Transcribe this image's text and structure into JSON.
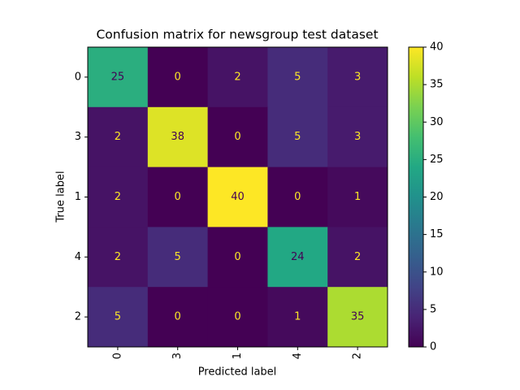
{
  "chart_data": {
    "type": "heatmap",
    "title": "Confusion matrix for newsgroup test dataset",
    "xlabel": "Predicted label",
    "ylabel": "True label",
    "x_categories": [
      "0",
      "3",
      "1",
      "4",
      "2"
    ],
    "y_categories": [
      "0",
      "3",
      "1",
      "4",
      "2"
    ],
    "z": [
      [
        25,
        0,
        2,
        5,
        3
      ],
      [
        2,
        38,
        0,
        5,
        3
      ],
      [
        2,
        0,
        40,
        0,
        1
      ],
      [
        2,
        5,
        0,
        24,
        2
      ],
      [
        5,
        0,
        0,
        1,
        35
      ]
    ],
    "colormap": "viridis",
    "clim": [
      0,
      40
    ],
    "cticks": [
      0,
      5,
      10,
      15,
      20,
      25,
      30,
      35,
      40
    ]
  }
}
